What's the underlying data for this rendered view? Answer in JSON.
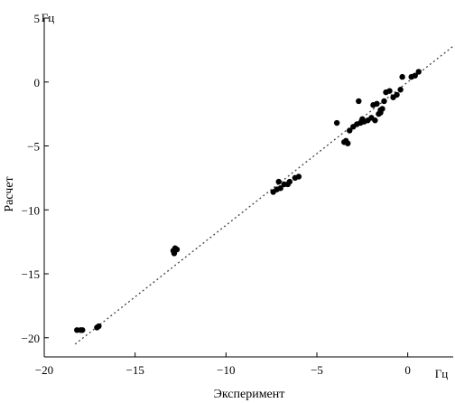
{
  "chart_data": {
    "type": "scatter",
    "xlabel": "Эксперимент",
    "ylabel": "Расчет",
    "x_unit": "Гц",
    "y_unit": "Гц",
    "xlim": [
      -20,
      2.5
    ],
    "ylim": [
      -21.5,
      5
    ],
    "x_ticks": [
      -20,
      -15,
      -10,
      -5,
      0
    ],
    "y_ticks": [
      -20,
      -15,
      -10,
      -5,
      0,
      5
    ],
    "grid": false,
    "series": [
      {
        "points": [
          [
            -18.2,
            -19.4
          ],
          [
            -18.0,
            -19.4
          ],
          [
            -17.9,
            -19.4
          ],
          [
            -17.1,
            -19.2
          ],
          [
            -17.0,
            -19.1
          ],
          [
            -12.9,
            -13.2
          ],
          [
            -12.8,
            -13.0
          ],
          [
            -12.7,
            -13.1
          ],
          [
            -12.85,
            -13.4
          ],
          [
            -7.4,
            -8.6
          ],
          [
            -7.2,
            -8.4
          ],
          [
            -7.0,
            -8.3
          ],
          [
            -7.1,
            -7.8
          ],
          [
            -6.8,
            -8.0
          ],
          [
            -6.6,
            -8.0
          ],
          [
            -6.5,
            -7.8
          ],
          [
            -6.2,
            -7.5
          ],
          [
            -6.0,
            -7.4
          ],
          [
            -3.9,
            -3.2
          ],
          [
            -3.5,
            -4.7
          ],
          [
            -3.3,
            -4.8
          ],
          [
            -3.4,
            -4.6
          ],
          [
            -3.2,
            -3.8
          ],
          [
            -3.0,
            -3.5
          ],
          [
            -2.8,
            -3.3
          ],
          [
            -2.6,
            -3.2
          ],
          [
            -2.5,
            -2.9
          ],
          [
            -2.4,
            -3.1
          ],
          [
            -2.2,
            -3.0
          ],
          [
            -2.0,
            -2.8
          ],
          [
            -1.8,
            -3.0
          ],
          [
            -1.6,
            -2.5
          ],
          [
            -1.5,
            -2.4
          ],
          [
            -2.7,
            -1.5
          ],
          [
            -1.9,
            -1.8
          ],
          [
            -1.7,
            -1.7
          ],
          [
            -1.5,
            -2.2
          ],
          [
            -1.4,
            -2.1
          ],
          [
            -1.3,
            -1.5
          ],
          [
            -1.2,
            -0.8
          ],
          [
            -1.0,
            -0.7
          ],
          [
            -0.8,
            -1.2
          ],
          [
            -0.6,
            -1.0
          ],
          [
            -0.4,
            -0.6
          ],
          [
            -0.3,
            0.4
          ],
          [
            0.2,
            0.4
          ],
          [
            0.4,
            0.5
          ],
          [
            0.6,
            0.8
          ]
        ]
      }
    ],
    "fit_line": {
      "x": [
        -18.3,
        2.5
      ],
      "y": [
        -20.5,
        2.8
      ]
    }
  }
}
